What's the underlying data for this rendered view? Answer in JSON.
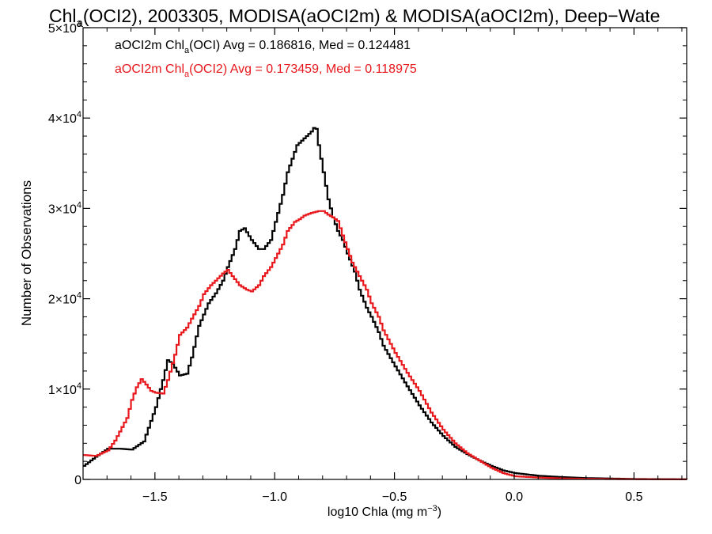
{
  "chart_data": {
    "type": "line",
    "title": {
      "pre": "Chl",
      "sub": "a",
      "post": "(OCI2), 2003305, MODISA(aOCI2m) & MODISA(aOCI2m), Deep−Wate"
    },
    "xlabel": {
      "pre": "log10 Chla (mg m",
      "sup": "−3",
      "post": ")"
    },
    "ylabel": "Number of Observations",
    "xlim": [
      -1.8,
      0.72
    ],
    "ylim": [
      0,
      50000
    ],
    "xticks": [
      {
        "value": -1.5,
        "label": "−1.5"
      },
      {
        "value": -1.0,
        "label": "−1.0"
      },
      {
        "value": -0.5,
        "label": "−0.5"
      },
      {
        "value": 0.0,
        "label": "0.0"
      },
      {
        "value": 0.5,
        "label": "0.5"
      }
    ],
    "yticks": [
      {
        "value": 0,
        "label": "0"
      },
      {
        "value": 10000,
        "label": "1×10",
        "exp": "4"
      },
      {
        "value": 20000,
        "label": "2×10",
        "exp": "4"
      },
      {
        "value": 30000,
        "label": "3×10",
        "exp": "4"
      },
      {
        "value": 40000,
        "label": "4×10",
        "exp": "4"
      },
      {
        "value": 50000,
        "label": "5×10",
        "exp": "4"
      }
    ],
    "grid": false,
    "legend": [
      {
        "pre": "aOCI2m Chl",
        "sub": "a",
        "post": "(OCI) Avg = 0.186816, Med = 0.124481",
        "color": "#000000"
      },
      {
        "pre": "aOCI2m Chl",
        "sub": "a",
        "post": "(OCI2) Avg = 0.173459, Med = 0.118975",
        "color": "#e8171c"
      }
    ],
    "series": [
      {
        "color": "#000000",
        "x": [
          -1.8,
          -1.75,
          -1.7,
          -1.65,
          -1.6,
          -1.55,
          -1.5,
          -1.47,
          -1.45,
          -1.43,
          -1.4,
          -1.37,
          -1.35,
          -1.32,
          -1.28,
          -1.25,
          -1.22,
          -1.2,
          -1.17,
          -1.15,
          -1.13,
          -1.1,
          -1.07,
          -1.05,
          -1.02,
          -1.0,
          -0.97,
          -0.95,
          -0.93,
          -0.91,
          -0.89,
          -0.87,
          -0.85,
          -0.84,
          -0.83,
          -0.82,
          -0.8,
          -0.78,
          -0.76,
          -0.74,
          -0.72,
          -0.7,
          -0.67,
          -0.65,
          -0.62,
          -0.6,
          -0.57,
          -0.55,
          -0.5,
          -0.45,
          -0.4,
          -0.35,
          -0.3,
          -0.25,
          -0.2,
          -0.15,
          -0.1,
          -0.05,
          0.0,
          0.1,
          0.2,
          0.3,
          0.4,
          0.5,
          0.6,
          0.72
        ],
        "y": [
          1500,
          2500,
          3400,
          3400,
          3300,
          4200,
          8000,
          11000,
          13200,
          12800,
          11500,
          11700,
          13500,
          17000,
          19500,
          20600,
          22000,
          23500,
          25500,
          27500,
          27800,
          26500,
          25500,
          25500,
          26500,
          28500,
          31500,
          34000,
          35500,
          37000,
          37500,
          38000,
          38500,
          38900,
          38800,
          37000,
          34000,
          31000,
          29000,
          27500,
          26500,
          25000,
          23000,
          21000,
          19000,
          18000,
          16300,
          14800,
          12500,
          10300,
          8200,
          6300,
          4800,
          3600,
          2800,
          2100,
          1500,
          1000,
          700,
          400,
          250,
          150,
          100,
          50,
          30,
          10
        ]
      },
      {
        "color": "#e8171c",
        "x": [
          -1.8,
          -1.75,
          -1.7,
          -1.67,
          -1.65,
          -1.62,
          -1.6,
          -1.58,
          -1.56,
          -1.54,
          -1.52,
          -1.5,
          -1.47,
          -1.45,
          -1.42,
          -1.4,
          -1.37,
          -1.35,
          -1.32,
          -1.3,
          -1.27,
          -1.25,
          -1.22,
          -1.2,
          -1.18,
          -1.15,
          -1.12,
          -1.1,
          -1.07,
          -1.05,
          -1.02,
          -1.0,
          -0.97,
          -0.95,
          -0.92,
          -0.9,
          -0.88,
          -0.85,
          -0.82,
          -0.8,
          -0.78,
          -0.76,
          -0.74,
          -0.72,
          -0.7,
          -0.68,
          -0.65,
          -0.62,
          -0.6,
          -0.57,
          -0.55,
          -0.52,
          -0.5,
          -0.45,
          -0.4,
          -0.35,
          -0.3,
          -0.25,
          -0.2,
          -0.15,
          -0.1,
          -0.05,
          0.0,
          0.1,
          0.2,
          0.3,
          0.4,
          0.5,
          0.6,
          0.72
        ],
        "y": [
          2700,
          2600,
          3200,
          4300,
          5300,
          6800,
          8800,
          10200,
          11100,
          10500,
          9800,
          9600,
          9500,
          11000,
          13800,
          16000,
          16800,
          17800,
          19200,
          20500,
          21500,
          22000,
          22800,
          23200,
          22500,
          21500,
          21000,
          20800,
          21500,
          22500,
          23500,
          24500,
          26000,
          27500,
          28500,
          28800,
          29200,
          29500,
          29700,
          29700,
          29300,
          29000,
          28600,
          27000,
          25500,
          24000,
          22500,
          21000,
          19500,
          18000,
          16500,
          15000,
          14000,
          11800,
          9800,
          7400,
          5500,
          4000,
          2900,
          2100,
          1300,
          700,
          350,
          200,
          110,
          70,
          40,
          25,
          15,
          10
        ]
      }
    ]
  }
}
